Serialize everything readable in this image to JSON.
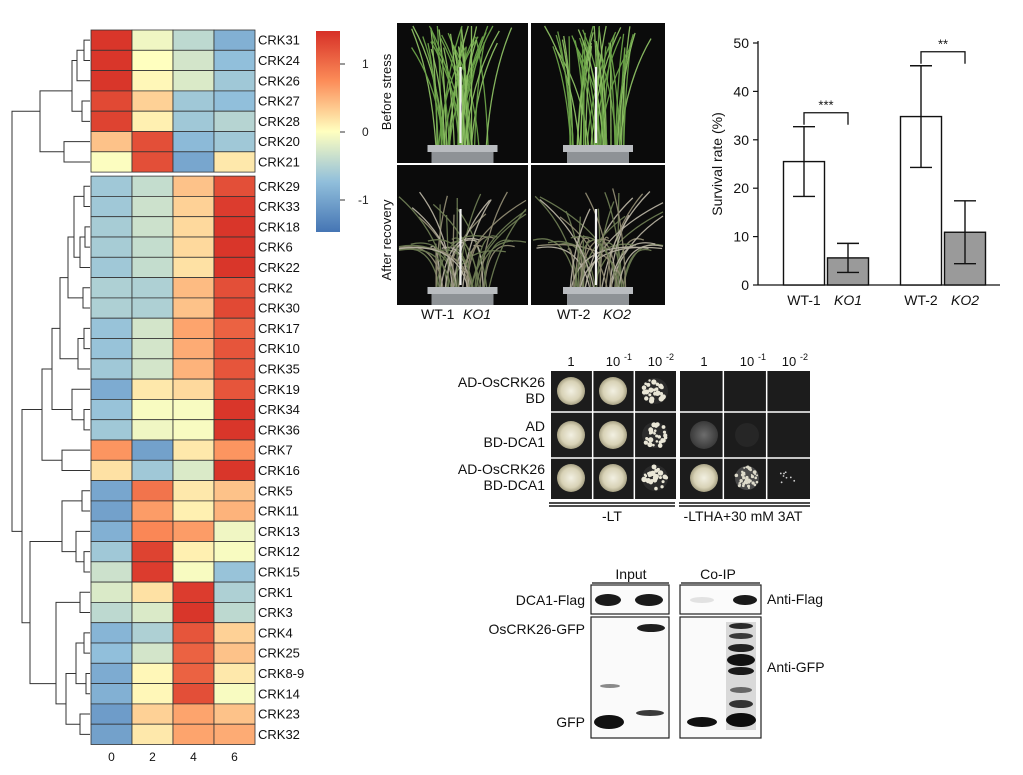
{
  "heatmap": {
    "columns": [
      "0",
      "2",
      "4",
      "6"
    ],
    "colorbar_ticks": [
      "1",
      "0",
      "-1"
    ],
    "rows": [
      {
        "label": "CRK31",
        "values": [
          1.45,
          -0.1,
          -0.45,
          -0.9
        ]
      },
      {
        "label": "CRK24",
        "values": [
          1.45,
          0.0,
          -0.3,
          -0.75
        ]
      },
      {
        "label": "CRK26",
        "values": [
          1.45,
          0.05,
          -0.25,
          -0.65
        ]
      },
      {
        "label": "CRK27",
        "values": [
          1.3,
          0.3,
          -0.65,
          -0.75
        ]
      },
      {
        "label": "CRK28",
        "values": [
          1.35,
          0.1,
          -0.65,
          -0.5
        ]
      },
      {
        "label": "CRK20",
        "values": [
          0.4,
          1.25,
          -0.8,
          -0.65
        ]
      },
      {
        "label": "CRK21",
        "values": [
          -0.02,
          1.25,
          -1.0,
          0.15
        ]
      },
      {
        "label": "CRK29",
        "values": [
          -0.65,
          -0.4,
          0.4,
          1.25
        ]
      },
      {
        "label": "CRK33",
        "values": [
          -0.65,
          -0.35,
          0.3,
          1.4
        ]
      },
      {
        "label": "CRK18",
        "values": [
          -0.6,
          -0.35,
          0.25,
          1.45
        ]
      },
      {
        "label": "CRK6",
        "values": [
          -0.6,
          -0.4,
          0.25,
          1.45
        ]
      },
      {
        "label": "CRK22",
        "values": [
          -0.65,
          -0.4,
          0.2,
          1.45
        ]
      },
      {
        "label": "CRK2",
        "values": [
          -0.55,
          -0.55,
          0.45,
          1.25
        ]
      },
      {
        "label": "CRK30",
        "values": [
          -0.55,
          -0.55,
          0.4,
          1.3
        ]
      },
      {
        "label": "CRK17",
        "values": [
          -0.7,
          -0.3,
          0.6,
          1.1
        ]
      },
      {
        "label": "CRK10",
        "values": [
          -0.7,
          -0.3,
          0.55,
          1.2
        ]
      },
      {
        "label": "CRK35",
        "values": [
          -0.65,
          -0.3,
          0.5,
          1.2
        ]
      },
      {
        "label": "CRK19",
        "values": [
          -0.95,
          0.15,
          0.25,
          1.2
        ]
      },
      {
        "label": "CRK34",
        "values": [
          -0.7,
          -0.05,
          -0.05,
          1.45
        ]
      },
      {
        "label": "CRK36",
        "values": [
          -0.65,
          -0.1,
          -0.05,
          1.45
        ]
      },
      {
        "label": "CRK7",
        "values": [
          0.7,
          -1.05,
          0.15,
          0.7
        ]
      },
      {
        "label": "CRK16",
        "values": [
          0.2,
          -0.65,
          -0.25,
          1.45
        ]
      },
      {
        "label": "CRK5",
        "values": [
          -1.0,
          0.95,
          0.15,
          0.4
        ]
      },
      {
        "label": "CRK11",
        "values": [
          -1.05,
          0.65,
          0.1,
          0.5
        ]
      },
      {
        "label": "CRK13",
        "values": [
          -0.9,
          0.8,
          0.65,
          -0.1
        ]
      },
      {
        "label": "CRK12",
        "values": [
          -0.65,
          1.35,
          0.1,
          -0.05
        ]
      },
      {
        "label": "CRK15",
        "values": [
          -0.35,
          1.4,
          -0.05,
          -0.7
        ]
      },
      {
        "label": "CRK1",
        "values": [
          -0.25,
          0.2,
          1.4,
          -0.55
        ]
      },
      {
        "label": "CRK3",
        "values": [
          -0.45,
          -0.25,
          1.45,
          -0.45
        ]
      },
      {
        "label": "CRK4",
        "values": [
          -0.85,
          -0.55,
          1.2,
          0.3
        ]
      },
      {
        "label": "CRK25",
        "values": [
          -0.75,
          -0.3,
          1.1,
          0.4
        ]
      },
      {
        "label": "CRK8-9",
        "values": [
          -0.95,
          0.05,
          1.1,
          0.15
        ]
      },
      {
        "label": "CRK14",
        "values": [
          -0.9,
          0.05,
          1.25,
          -0.05
        ]
      },
      {
        "label": "CRK23",
        "values": [
          -1.1,
          0.3,
          0.6,
          0.4
        ]
      },
      {
        "label": "CRK32",
        "values": [
          -1.05,
          0.15,
          0.6,
          0.55
        ]
      }
    ]
  },
  "photos": {
    "row_labels": [
      "Before stress",
      "After recovery"
    ],
    "captions": [
      {
        "text": "WT-1"
      },
      {
        "text": "KO1",
        "italic": true
      },
      {
        "text": "WT-2"
      },
      {
        "text": "KO2",
        "italic": true
      }
    ]
  },
  "chart_data": {
    "type": "bar",
    "categories": [
      "WT-1",
      "KO1",
      "WT-2",
      "KO2"
    ],
    "italic_categories": [
      "KO1",
      "KO2"
    ],
    "values": [
      25.5,
      5.6,
      34.8,
      10.9
    ],
    "error": [
      7.2,
      3.0,
      10.5,
      6.5
    ],
    "bar_colors": [
      "#ffffff",
      "#9a9a9a",
      "#ffffff",
      "#9a9a9a"
    ],
    "ylabel": "Survival rate (%)",
    "ylim": [
      0,
      50
    ],
    "yticks": [
      0,
      10,
      20,
      30,
      40,
      50
    ],
    "significance": [
      {
        "pair": [
          "WT-1",
          "KO1"
        ],
        "label": "***"
      },
      {
        "pair": [
          "WT-2",
          "KO2"
        ],
        "label": "**"
      }
    ]
  },
  "y2h": {
    "dilutions": [
      "1",
      "10",
      "10"
    ],
    "dilution_exponents": [
      "",
      "-1",
      "-2"
    ],
    "row_labels": [
      [
        "AD-OsCRK26",
        "BD"
      ],
      [
        "AD",
        "BD-DCA1"
      ],
      [
        "AD-OsCRK26",
        "BD-DCA1"
      ]
    ],
    "media": [
      "-LT",
      "-LTHA+30 mM 3AT"
    ]
  },
  "coip": {
    "column_headers": [
      "Input",
      "Co-IP"
    ],
    "left_labels": [
      "DCA1-Flag",
      "OsCRK26-GFP",
      "GFP"
    ],
    "right_labels": [
      "Anti-Flag",
      "Anti-GFP"
    ]
  }
}
